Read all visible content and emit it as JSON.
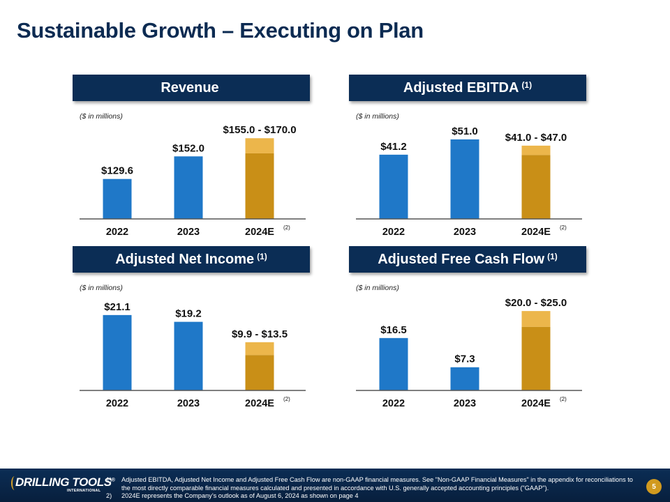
{
  "page_title": "Sustainable Growth – Executing on Plan",
  "colors": {
    "navy": "#0b2d55",
    "actual_bar": "#1f78c8",
    "estimate_low": "#c98f17",
    "estimate_high": "#ecb64b",
    "axis": "#555555",
    "text": "#111111"
  },
  "chart_data": [
    {
      "type": "bar",
      "title": "Revenue",
      "title_footnote": "",
      "units_note": "($ in millions)",
      "categories": [
        "2022",
        "2023",
        "2024E"
      ],
      "category_footnotes": [
        "",
        "",
        "(2)"
      ],
      "values": [
        129.6,
        152.0,
        null
      ],
      "estimate_range": {
        "category": "2024E",
        "low": 155.0,
        "high": 170.0
      },
      "data_labels": [
        "$129.6",
        "$152.0",
        "$155.0 - $170.0"
      ],
      "ylim": [
        90,
        175
      ],
      "grid": false,
      "xlabel": "",
      "ylabel": ""
    },
    {
      "type": "bar",
      "title": "Adjusted EBITDA",
      "title_footnote": "(1)",
      "units_note": "($ in millions)",
      "categories": [
        "2022",
        "2023",
        "2024E"
      ],
      "category_footnotes": [
        "",
        "",
        "(2)"
      ],
      "values": [
        41.2,
        51.0,
        null
      ],
      "estimate_range": {
        "category": "2024E",
        "low": 41.0,
        "high": 47.0
      },
      "data_labels": [
        "$41.2",
        "$51.0",
        "$41.0 - $47.0"
      ],
      "ylim": [
        0,
        55
      ],
      "grid": false,
      "xlabel": "",
      "ylabel": ""
    },
    {
      "type": "bar",
      "title": "Adjusted Net Income",
      "title_footnote": "(1)",
      "units_note": "($ in millions)",
      "categories": [
        "2022",
        "2023",
        "2024E"
      ],
      "category_footnotes": [
        "",
        "",
        "(2)"
      ],
      "values": [
        21.1,
        19.2,
        null
      ],
      "estimate_range": {
        "category": "2024E",
        "low": 9.9,
        "high": 13.5
      },
      "data_labels": [
        "$21.1",
        "$19.2",
        "$9.9 - $13.5"
      ],
      "ylim": [
        0,
        24
      ],
      "grid": false,
      "xlabel": "",
      "ylabel": ""
    },
    {
      "type": "bar",
      "title": "Adjusted Free Cash Flow",
      "title_footnote": "(1)",
      "units_note": "($ in millions)",
      "categories": [
        "2022",
        "2023",
        "2024E"
      ],
      "category_footnotes": [
        "",
        "",
        "(2)"
      ],
      "values": [
        16.5,
        7.3,
        null
      ],
      "estimate_range": {
        "category": "2024E",
        "low": 20.0,
        "high": 25.0
      },
      "data_labels": [
        "$16.5",
        "$7.3",
        "$20.0 - $25.0"
      ],
      "ylim": [
        0,
        27
      ],
      "grid": false,
      "xlabel": "",
      "ylabel": ""
    }
  ],
  "footer": {
    "logo_text": "DRILLING TOOLS",
    "logo_registered": "®",
    "logo_subtext": "INTERNATIONAL",
    "notes": [
      {
        "num": "1)",
        "text": "Adjusted EBITDA, Adjusted Net Income and Adjusted Free Cash Flow are non-GAAP financial measures. See \"Non-GAAP Financial Measures\" in the appendix for reconciliations to the most directly comparable financial measures calculated and presented in accordance with U.S. generally accepted accounting principles (\"GAAP\")."
      },
      {
        "num": "2)",
        "text": "2024E represents the Company’s outlook as of August 6, 2024 as shown on page 4"
      }
    ],
    "page_number": "5"
  }
}
